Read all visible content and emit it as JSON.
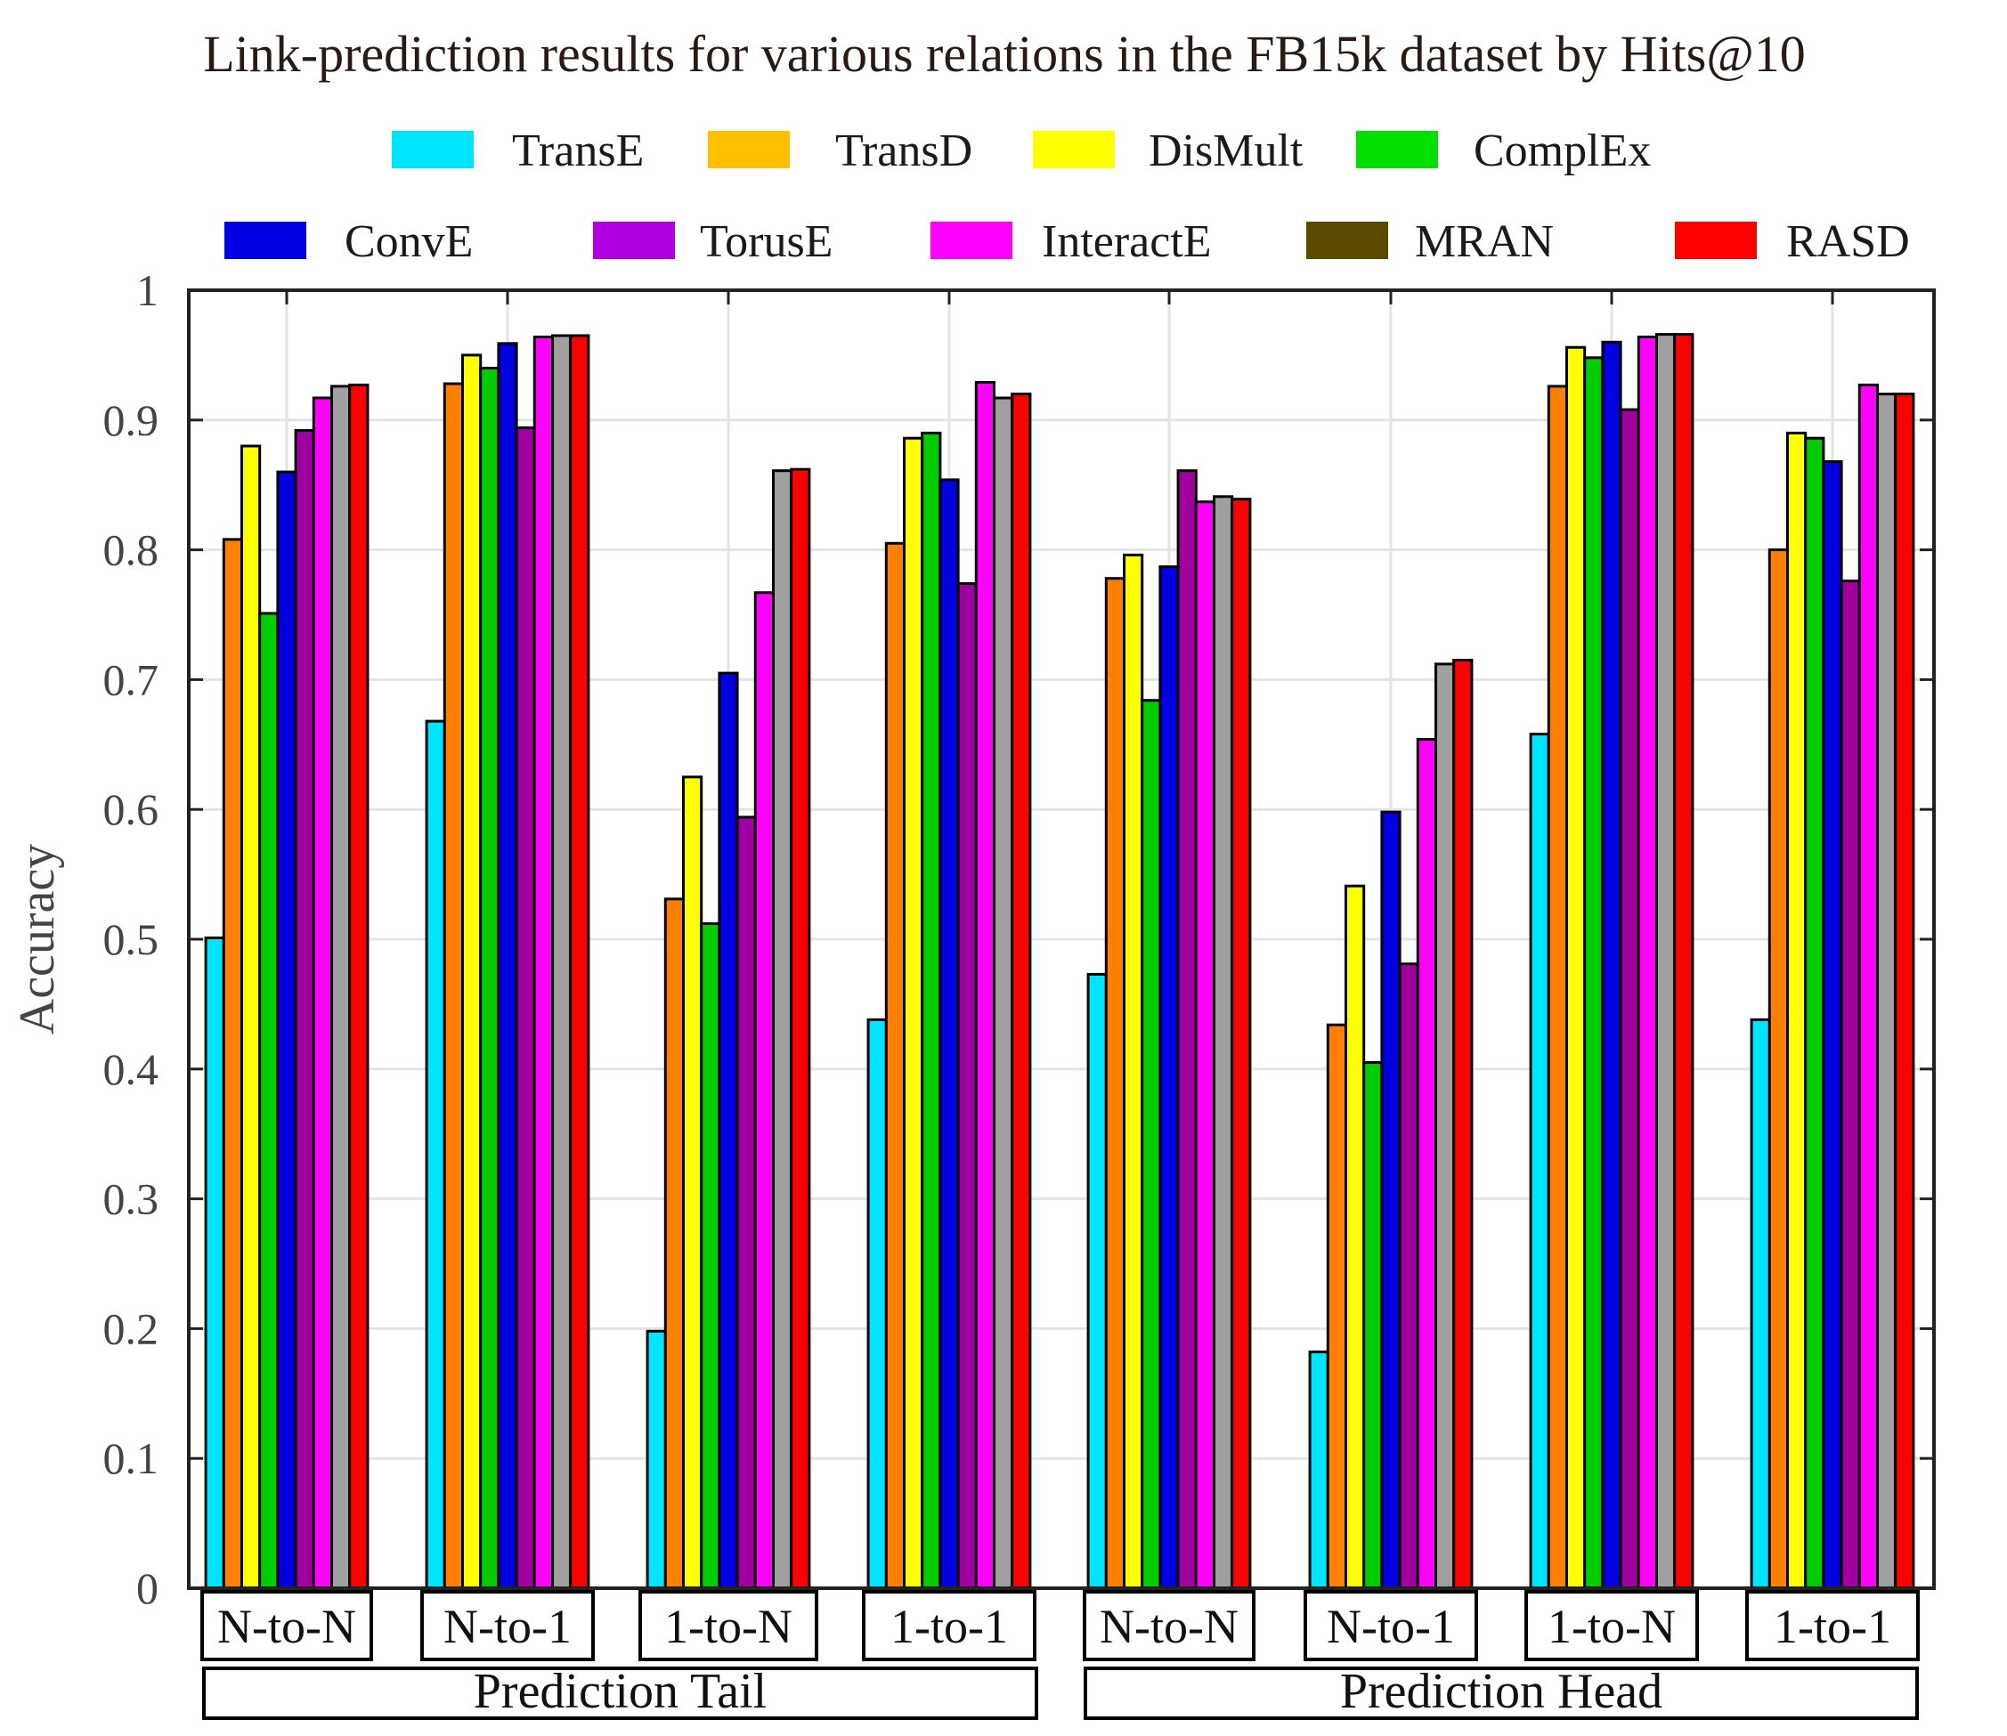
{
  "chart_data": {
    "type": "bar",
    "title": "Link-prediction results for various relations in the FB15k dataset by Hits@10",
    "ylabel": "Accuracy",
    "xlabel": "",
    "ylim": [
      0,
      1
    ],
    "yticks": [
      "0",
      "0.1",
      "0.2",
      "0.3",
      "0.4",
      "0.5",
      "0.6",
      "0.7",
      "0.8",
      "0.9",
      "1"
    ],
    "grid": true,
    "legend_position": "top",
    "categories": [
      "N-to-N",
      "N-to-1",
      "1-to-N",
      "1-to-1",
      "N-to-N",
      "N-to-1",
      "1-to-N",
      "1-to-1"
    ],
    "groups": [
      {
        "label": "Prediction Tail",
        "categories": [
          0,
          1,
          2,
          3
        ]
      },
      {
        "label": "Prediction Head",
        "categories": [
          4,
          5,
          6,
          7
        ]
      }
    ],
    "series": [
      {
        "name": "TransE",
        "color": "#00e5ff",
        "values": [
          0.501,
          0.668,
          0.198,
          0.438,
          0.473,
          0.182,
          0.658,
          0.438
        ]
      },
      {
        "name": "TransD",
        "color": "#ff8000",
        "values": [
          0.808,
          0.928,
          0.531,
          0.805,
          0.778,
          0.434,
          0.926,
          0.8
        ]
      },
      {
        "name": "DisMult",
        "color": "#ffff00",
        "values": [
          0.88,
          0.95,
          0.625,
          0.886,
          0.796,
          0.541,
          0.956,
          0.89
        ]
      },
      {
        "name": "ComplEx",
        "color": "#00cc00",
        "values": [
          0.751,
          0.94,
          0.512,
          0.89,
          0.684,
          0.405,
          0.948,
          0.886
        ]
      },
      {
        "name": "ConvE",
        "color": "#0000e0",
        "values": [
          0.86,
          0.959,
          0.705,
          0.854,
          0.787,
          0.598,
          0.96,
          0.868
        ]
      },
      {
        "name": "TorusE",
        "color": "#a000a0",
        "values": [
          0.892,
          0.894,
          0.594,
          0.774,
          0.861,
          0.481,
          0.908,
          0.776
        ]
      },
      {
        "name": "InteractE",
        "color": "#ff00ff",
        "values": [
          0.917,
          0.964,
          0.767,
          0.929,
          0.837,
          0.654,
          0.964,
          0.927
        ]
      },
      {
        "name": "MRAN",
        "color": "#a0a0a0",
        "values": [
          0.926,
          0.965,
          0.861,
          0.917,
          0.841,
          0.712,
          0.966,
          0.92
        ]
      },
      {
        "name": "RASD",
        "color": "#ff0000",
        "values": [
          0.927,
          0.965,
          0.862,
          0.92,
          0.839,
          0.715,
          0.966,
          0.92
        ]
      }
    ],
    "legend": [
      {
        "name": "TransE",
        "swatch": "#00e5ff"
      },
      {
        "name": "TransD",
        "swatch": "#ffc000"
      },
      {
        "name": "DisMult",
        "swatch": "#ffff00"
      },
      {
        "name": "ComplEx",
        "swatch": "#00e000"
      },
      {
        "name": "ConvE",
        "swatch": "#0000e0"
      },
      {
        "name": "TorusE",
        "swatch": "#b000e0"
      },
      {
        "name": "InteractE",
        "swatch": "#ff00ff"
      },
      {
        "name": "MRAN",
        "swatch": "#5a4a00"
      },
      {
        "name": "RASD",
        "swatch": "#ff0000"
      }
    ]
  }
}
